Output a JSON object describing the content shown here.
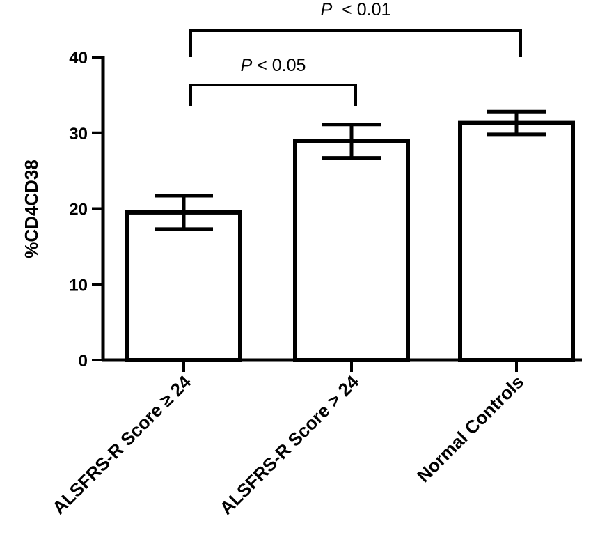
{
  "chart_data": {
    "type": "bar",
    "categories": [
      "ALSFRS-R Score ≥ 24",
      "ALSFRS-R Score > 24",
      "Normal Controls"
    ],
    "values": [
      19.5,
      28.9,
      31.3
    ],
    "error_low": [
      17.3,
      26.7,
      29.8
    ],
    "error_high": [
      21.7,
      31.1,
      32.8
    ],
    "ylabel": "%CD4CD38",
    "xlabel": "",
    "ylim": [
      0,
      40
    ],
    "yticks": [
      0,
      10,
      20,
      30,
      40
    ],
    "grid": false,
    "annotations": [
      {
        "p_italic": "P",
        "text": " < 0.05",
        "from": 0,
        "to": 1
      },
      {
        "p_italic": "P",
        "text": "  < 0.01",
        "from": 0,
        "to": 2
      }
    ]
  }
}
